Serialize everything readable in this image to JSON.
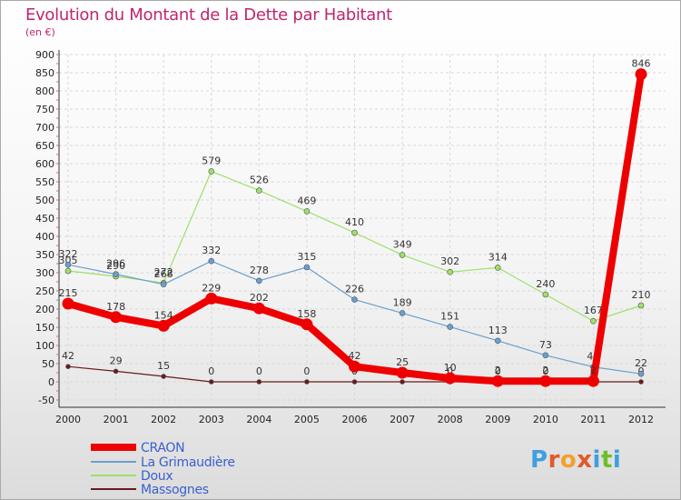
{
  "title": "Evolution du Montant de la Dette par Habitant",
  "subtitle": "(en €)",
  "chart_data": {
    "type": "line",
    "title": "Evolution du Montant de la Dette par Habitant",
    "ylabel": "(en €)",
    "x": [
      "2000",
      "2001",
      "2002",
      "2003",
      "2004",
      "2005",
      "2006",
      "2007",
      "2008",
      "2009",
      "2010",
      "2011",
      "2012"
    ],
    "ylim": [
      -50,
      900
    ],
    "yticks": [
      -50,
      0,
      50,
      100,
      150,
      200,
      250,
      300,
      350,
      400,
      450,
      500,
      550,
      600,
      650,
      700,
      750,
      800,
      850,
      900
    ],
    "grid": true,
    "legend_placement": "bottom-left",
    "series": [
      {
        "name": "Massognes",
        "color": "#6b1a1a",
        "width": 1.2,
        "dot": 5,
        "values": [
          42,
          29,
          15,
          0,
          0,
          0,
          0,
          0,
          0,
          0,
          0,
          0,
          0
        ],
        "labels": [
          "42",
          "29",
          "15",
          "0",
          "0",
          "0",
          "0",
          "0",
          "0",
          "0",
          "0",
          "0",
          "0"
        ]
      },
      {
        "name": "Doux",
        "color": "#9ee068",
        "width": 1.2,
        "dot": 6,
        "values": [
          305,
          290,
          272,
          579,
          526,
          469,
          410,
          349,
          302,
          314,
          240,
          167,
          210
        ],
        "labels": [
          "305",
          "290",
          "272",
          "579",
          "526",
          "469",
          "410",
          "349",
          "302",
          "314",
          "240",
          "167",
          "210"
        ]
      },
      {
        "name": "La Grimaudière",
        "color": "#6b9fcf",
        "width": 1.2,
        "dot": 6,
        "values": [
          322,
          296,
          268,
          332,
          278,
          315,
          226,
          189,
          151,
          113,
          73,
          41,
          22
        ],
        "labels": [
          "322",
          "296",
          "268",
          "332",
          "278",
          "315",
          "226",
          "189",
          "151",
          "113",
          "73",
          "41",
          "22"
        ]
      },
      {
        "name": "CRAON",
        "color": "#ee0000",
        "width": 8,
        "dot": 13,
        "values": [
          215,
          178,
          154,
          229,
          202,
          158,
          42,
          25,
          10,
          2,
          2,
          2,
          846
        ],
        "labels": [
          "215",
          "178",
          "154",
          "229",
          "202",
          "158",
          "42",
          "25",
          "10",
          "2",
          "2",
          "2",
          "846"
        ]
      }
    ]
  },
  "legend": [
    {
      "name": "CRAON",
      "color": "#ee0000",
      "width": 8
    },
    {
      "name": "La Grimaudière",
      "color": "#6b9fcf",
      "width": 1.5
    },
    {
      "name": "Doux",
      "color": "#9ee068",
      "width": 1.5
    },
    {
      "name": "Massognes",
      "color": "#6b1a1a",
      "width": 1.5
    }
  ],
  "logo": {
    "text": "Proxiti",
    "colors": [
      "#3f9fdf",
      "#e05a2a",
      "#f2a12a",
      "#e05a2a",
      "#3f9fdf",
      "#6bbf2a",
      "#3f9fdf"
    ]
  }
}
